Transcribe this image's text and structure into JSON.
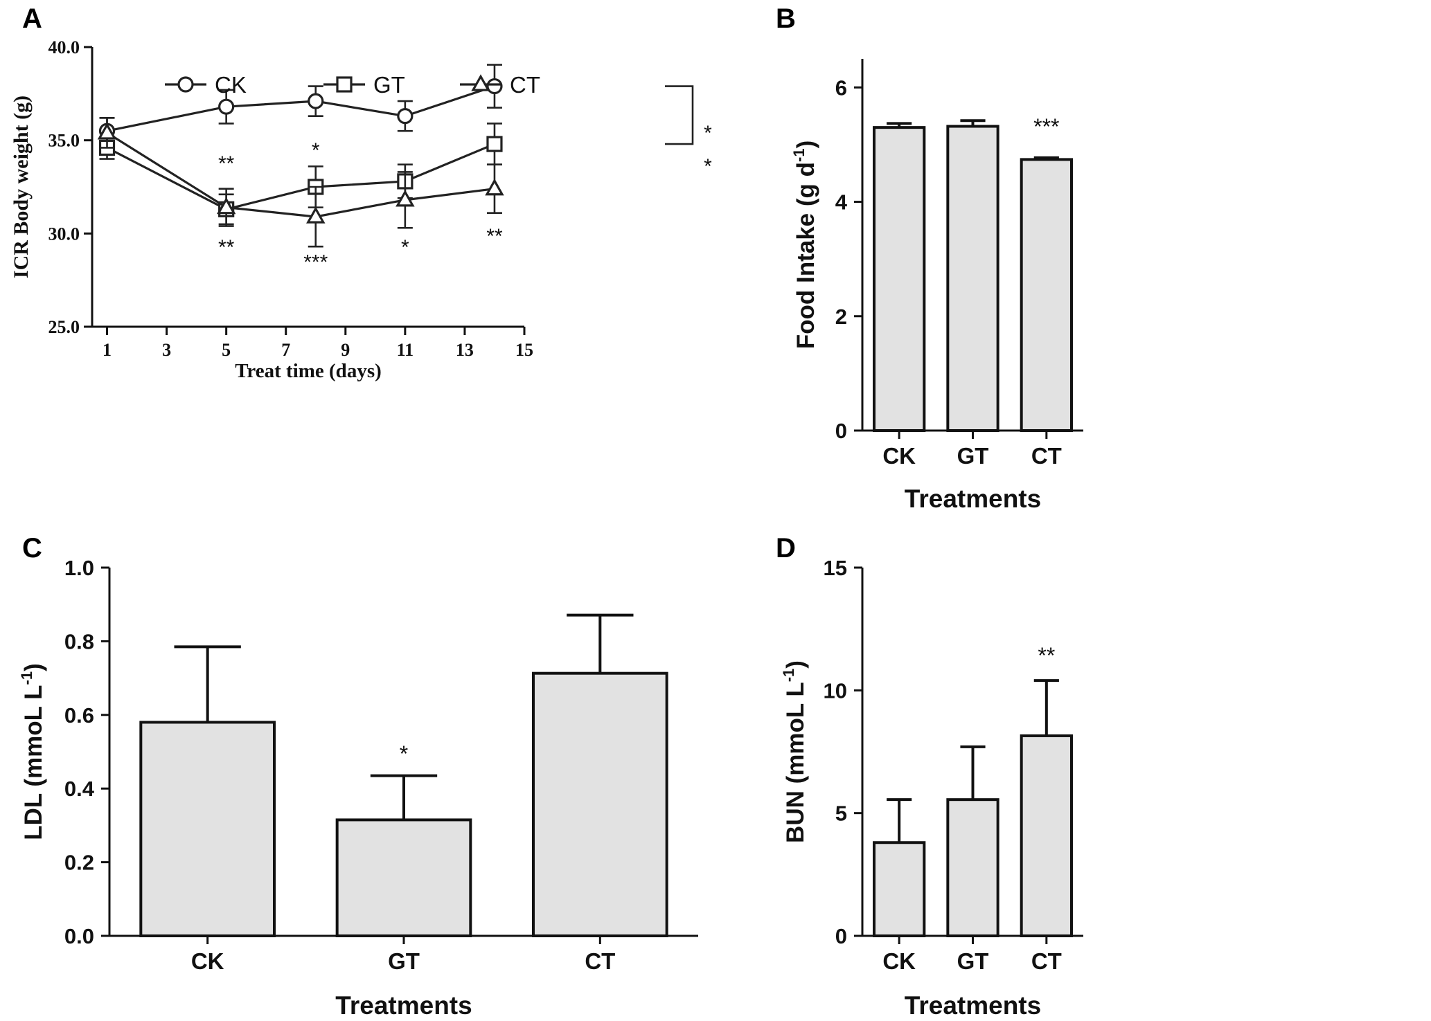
{
  "chart_data": [
    {
      "panel": "A",
      "type": "line",
      "ylabel": "ICR Body weight (g)",
      "xlabel": "Treat time (days)",
      "xlim": [
        0.5,
        15
      ],
      "xticks": [
        1,
        3,
        5,
        7,
        9,
        11,
        13,
        15
      ],
      "ylim": [
        25,
        40
      ],
      "yticks": [
        "25.0",
        "30.0",
        "35.0",
        "40.0"
      ],
      "x": [
        1,
        5,
        8,
        11,
        14
      ],
      "series": [
        {
          "name": "CK",
          "marker": "circle",
          "values": [
            35.5,
            36.8,
            37.1,
            36.3,
            37.9
          ],
          "errors": [
            0.7,
            0.9,
            0.8,
            0.8,
            1.15
          ]
        },
        {
          "name": "GT",
          "marker": "square",
          "values": [
            34.6,
            31.3,
            32.5,
            32.8,
            34.8
          ],
          "errors": [
            0.6,
            0.8,
            1.1,
            0.9,
            1.1
          ]
        },
        {
          "name": "CT",
          "marker": "triangle",
          "values": [
            35.4,
            31.4,
            30.9,
            31.8,
            32.4
          ],
          "errors": [
            0.8,
            1.0,
            1.6,
            1.5,
            1.3
          ]
        }
      ],
      "annotations": [
        {
          "text": "**",
          "x": 5,
          "y": 33.4
        },
        {
          "text": "*",
          "x": 8,
          "y": 34.1
        },
        {
          "text": "**",
          "x": 5,
          "y": 28.9
        },
        {
          "text": "***",
          "x": 8,
          "y": 28.1
        },
        {
          "text": "*",
          "x": 11,
          "y": 28.9
        },
        {
          "text": "**",
          "x": 14,
          "y": 29.5
        }
      ],
      "bracket_stars": [
        "*",
        "*"
      ]
    },
    {
      "panel": "B",
      "type": "bar",
      "categories": [
        "CK",
        "GT",
        "CT"
      ],
      "values": [
        5.3,
        5.32,
        4.74
      ],
      "errors": [
        0.07,
        0.1,
        0.03
      ],
      "ylabel": "Food Intake (g d-1)",
      "xlabel": "Treatments",
      "ylim": [
        0,
        6.5
      ],
      "yticks": [
        "0",
        "2",
        "4",
        "6"
      ],
      "annotations": [
        {
          "text": "***",
          "category": "CT",
          "y": 5.35
        }
      ]
    },
    {
      "panel": "C",
      "type": "bar",
      "categories": [
        "CK",
        "GT",
        "CT"
      ],
      "values": [
        0.58,
        0.315,
        0.713
      ],
      "errors": [
        0.205,
        0.12,
        0.158
      ],
      "ylabel": "LDL (mmoL L-1)",
      "xlabel": "Treatments",
      "ylim": [
        0,
        1.0
      ],
      "yticks": [
        "0.0",
        "0.2",
        "0.4",
        "0.6",
        "0.8",
        "1.0"
      ],
      "annotations": [
        {
          "text": "*",
          "category": "GT",
          "y": 0.5
        }
      ]
    },
    {
      "panel": "D",
      "type": "bar",
      "categories": [
        "CK",
        "GT",
        "CT"
      ],
      "values": [
        3.8,
        5.55,
        8.15
      ],
      "errors": [
        1.75,
        2.15,
        2.25
      ],
      "ylabel": "BUN (mmoL L-1)",
      "xlabel": "Treatments",
      "ylim": [
        0,
        15
      ],
      "yticks": [
        "0",
        "5",
        "10",
        "15"
      ],
      "annotations": [
        {
          "text": "**",
          "category": "CT",
          "y": 11.5
        }
      ]
    }
  ],
  "panel_labels": [
    "A",
    "B",
    "C",
    "D"
  ]
}
